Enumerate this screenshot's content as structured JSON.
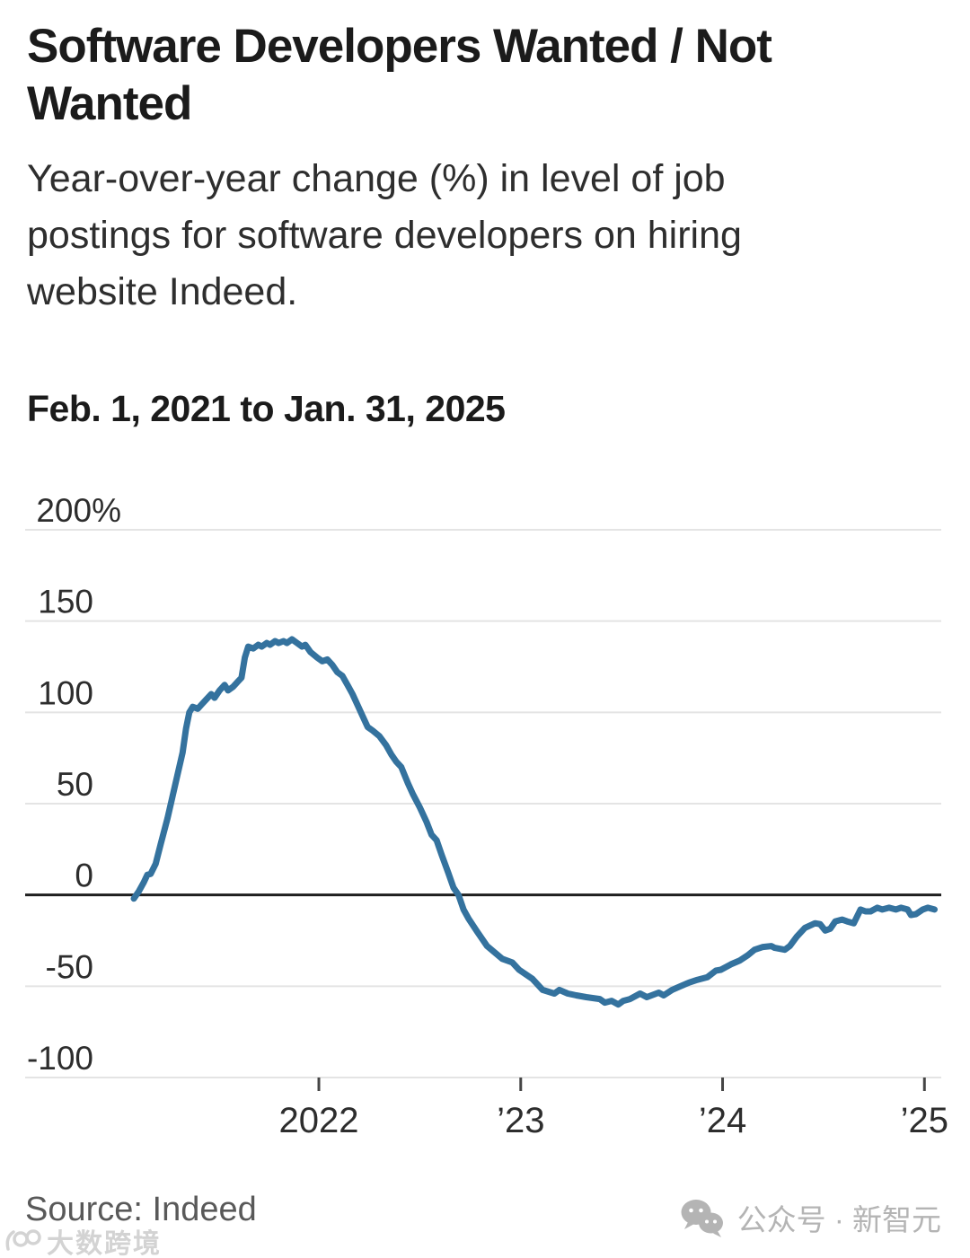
{
  "header": {
    "title": "Software Developers Wanted / Not Wanted",
    "subtitle": "Year-over-year change (%) in level of job postings for software developers on hiring website Indeed.",
    "period": "Feb. 1, 2021 to Jan. 31, 2025"
  },
  "footer": {
    "source": "Source: Indeed",
    "wechat_label": "公众号 · 新智元",
    "watermark": "大数跨境"
  },
  "chart_data": {
    "type": "line",
    "title": "Software Developers Wanted / Not Wanted",
    "subtitle": "Year-over-year change (%) in level of job postings for software developers on hiring website Indeed.",
    "period": "Feb. 1, 2021 to Jan. 31, 2025",
    "xlabel": "",
    "ylabel": "Year-over-year change (%)",
    "x_unit": "months since Feb. 2021",
    "xlim": [
      0,
      48
    ],
    "ylim": [
      -100,
      200
    ],
    "grid": true,
    "legend": "none",
    "colors": {
      "grid": "#e4e4e4",
      "zero_line": "#1f1f1f",
      "tick": "#454545",
      "line": "#34729E"
    },
    "y_ticks": [
      {
        "value": 200,
        "label": "200%"
      },
      {
        "value": 150,
        "label": "150"
      },
      {
        "value": 100,
        "label": "100"
      },
      {
        "value": 50,
        "label": "50"
      },
      {
        "value": 0,
        "label": "0"
      },
      {
        "value": -50,
        "label": "-50"
      },
      {
        "value": -100,
        "label": "-100"
      }
    ],
    "x_ticks": [
      {
        "month": 11,
        "label": "2022"
      },
      {
        "month": 23,
        "label": "’23"
      },
      {
        "month": 35,
        "label": "’24"
      },
      {
        "month": 47,
        "label": "’25"
      }
    ],
    "series": [
      {
        "name": "Software developer job postings on Indeed, YoY % change",
        "points": [
          [
            0,
            -2
          ],
          [
            0.3,
            2
          ],
          [
            0.6,
            7
          ],
          [
            0.8,
            11
          ],
          [
            1,
            11.5
          ],
          [
            1.3,
            17
          ],
          [
            1.6,
            28
          ],
          [
            2,
            42
          ],
          [
            2.3,
            54
          ],
          [
            2.6,
            66
          ],
          [
            2.9,
            78
          ],
          [
            3.1,
            91
          ],
          [
            3.3,
            100
          ],
          [
            3.5,
            103
          ],
          [
            3.8,
            102
          ],
          [
            4,
            104
          ],
          [
            4.3,
            107
          ],
          [
            4.6,
            110
          ],
          [
            4.8,
            108
          ],
          [
            5.1,
            112
          ],
          [
            5.4,
            115
          ],
          [
            5.6,
            112
          ],
          [
            5.9,
            114
          ],
          [
            6.2,
            117
          ],
          [
            6.4,
            119
          ],
          [
            6.6,
            130
          ],
          [
            6.8,
            136
          ],
          [
            7.1,
            135
          ],
          [
            7.4,
            137
          ],
          [
            7.6,
            136
          ],
          [
            7.9,
            138
          ],
          [
            8.1,
            137
          ],
          [
            8.4,
            139
          ],
          [
            8.6,
            138
          ],
          [
            8.9,
            139
          ],
          [
            9.1,
            138
          ],
          [
            9.4,
            140
          ],
          [
            9.7,
            138
          ],
          [
            10,
            136
          ],
          [
            10.2,
            137
          ],
          [
            10.5,
            133
          ],
          [
            10.9,
            130
          ],
          [
            11.2,
            128
          ],
          [
            11.5,
            129
          ],
          [
            11.8,
            126
          ],
          [
            12.1,
            122
          ],
          [
            12.4,
            120
          ],
          [
            12.7,
            115
          ],
          [
            13,
            110
          ],
          [
            13.3,
            104
          ],
          [
            13.6,
            98
          ],
          [
            13.9,
            92
          ],
          [
            14.2,
            90
          ],
          [
            14.6,
            87
          ],
          [
            15,
            82
          ],
          [
            15.3,
            77
          ],
          [
            15.6,
            73
          ],
          [
            15.9,
            70
          ],
          [
            16.3,
            61
          ],
          [
            16.6,
            55
          ],
          [
            17,
            48
          ],
          [
            17.4,
            40
          ],
          [
            17.7,
            33
          ],
          [
            18,
            30
          ],
          [
            18.3,
            22
          ],
          [
            18.7,
            12
          ],
          [
            19,
            4
          ],
          [
            19.3,
            0
          ],
          [
            19.6,
            -8
          ],
          [
            19.9,
            -13
          ],
          [
            20.4,
            -20
          ],
          [
            21,
            -28
          ],
          [
            21.9,
            -35
          ],
          [
            22.5,
            -37
          ],
          [
            22.9,
            -41
          ],
          [
            23.7,
            -46
          ],
          [
            24.3,
            -52
          ],
          [
            25,
            -54
          ],
          [
            25.3,
            -52
          ],
          [
            25.8,
            -54
          ],
          [
            26.3,
            -55
          ],
          [
            26.9,
            -56
          ],
          [
            27.7,
            -57
          ],
          [
            28,
            -59
          ],
          [
            28.4,
            -58
          ],
          [
            28.8,
            -60
          ],
          [
            29.1,
            -58
          ],
          [
            29.5,
            -57
          ],
          [
            30.1,
            -54
          ],
          [
            30.5,
            -56
          ],
          [
            31.2,
            -53.5
          ],
          [
            31.5,
            -55
          ],
          [
            32,
            -52
          ],
          [
            32.5,
            -50
          ],
          [
            33,
            -48
          ],
          [
            33.5,
            -46.5
          ],
          [
            34.1,
            -45
          ],
          [
            34.6,
            -41.5
          ],
          [
            34.9,
            -41
          ],
          [
            35.5,
            -38
          ],
          [
            36,
            -36
          ],
          [
            36.5,
            -33
          ],
          [
            36.9,
            -30
          ],
          [
            37.4,
            -28.5
          ],
          [
            37.9,
            -28
          ],
          [
            38.1,
            -29
          ],
          [
            38.7,
            -30
          ],
          [
            39,
            -28
          ],
          [
            39.4,
            -23
          ],
          [
            39.9,
            -18
          ],
          [
            40.5,
            -15.5
          ],
          [
            40.8,
            -16
          ],
          [
            41.1,
            -19.5
          ],
          [
            41.4,
            -18.5
          ],
          [
            41.7,
            -14.5
          ],
          [
            42.1,
            -13.5
          ],
          [
            42.4,
            -14.5
          ],
          [
            42.8,
            -15.5
          ],
          [
            43.2,
            -8
          ],
          [
            43.5,
            -9
          ],
          [
            43.8,
            -9
          ],
          [
            44.2,
            -7
          ],
          [
            44.5,
            -8
          ],
          [
            44.9,
            -7
          ],
          [
            45.3,
            -8
          ],
          [
            45.6,
            -7
          ],
          [
            46,
            -8
          ],
          [
            46.2,
            -11
          ],
          [
            46.5,
            -10.5
          ],
          [
            46.9,
            -8
          ],
          [
            47.2,
            -7
          ],
          [
            47.6,
            -8
          ]
        ]
      }
    ]
  }
}
